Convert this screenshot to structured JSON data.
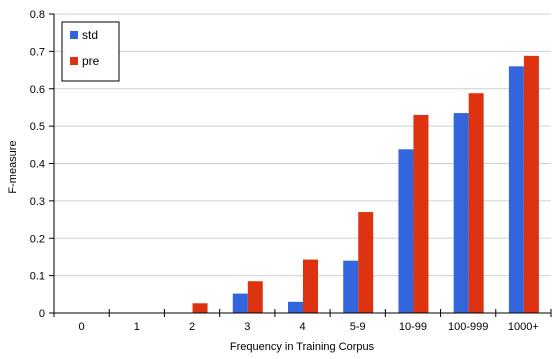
{
  "chart_data": {
    "type": "bar",
    "title": "",
    "xlabel": "Frequency in Training Corpus",
    "ylabel": "F-measure",
    "categories": [
      "0",
      "1",
      "2",
      "3",
      "4",
      "5-9",
      "10-99",
      "100-999",
      "1000+"
    ],
    "series": [
      {
        "name": "std",
        "color": "#3366dd",
        "values": [
          0,
          0,
          0,
          0.052,
          0.03,
          0.14,
          0.438,
          0.535,
          0.66
        ]
      },
      {
        "name": "pre",
        "color": "#dd3311",
        "values": [
          0,
          0,
          0.026,
          0.085,
          0.143,
          0.27,
          0.53,
          0.588,
          0.688
        ]
      }
    ],
    "ylim": [
      0,
      0.8
    ],
    "yticks": [
      "0",
      "0.1",
      "0.2",
      "0.3",
      "0.4",
      "0.5",
      "0.6",
      "0.7",
      "0.8"
    ],
    "grid": true,
    "legend_position": "top-left"
  }
}
